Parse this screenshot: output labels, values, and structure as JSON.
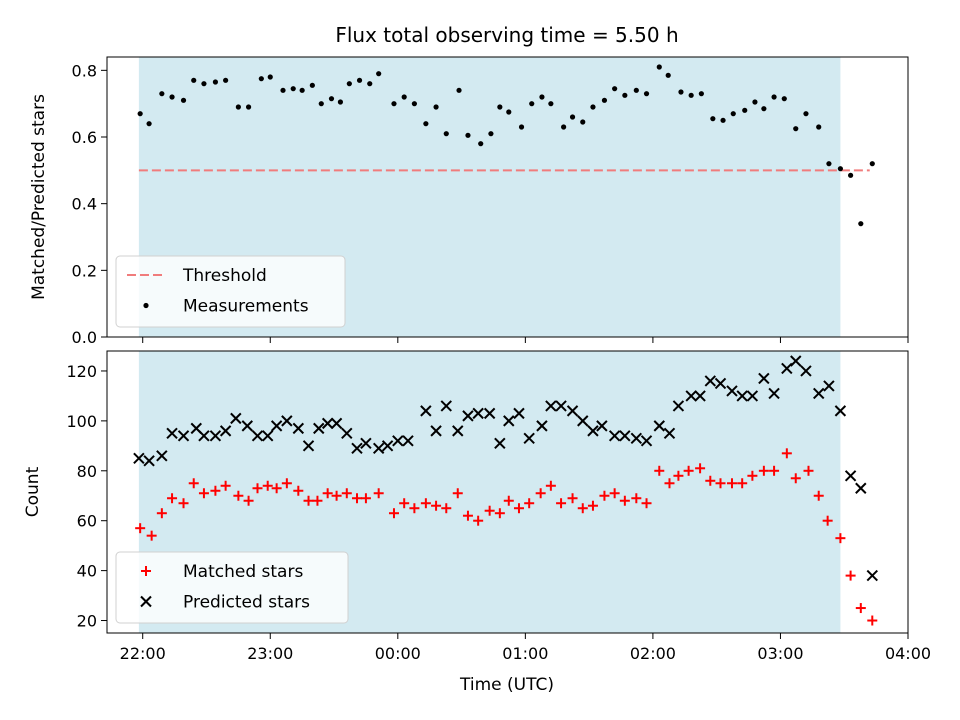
{
  "chart_data": {
    "title": "Flux total observing time = 5.50 h",
    "x_axis": {
      "label": "Time (UTC)",
      "range_hours": [
        21.72,
        28.0
      ],
      "ticks": [
        {
          "value": 22,
          "label": "22:00"
        },
        {
          "value": 23,
          "label": "23:00"
        },
        {
          "value": 24,
          "label": "00:00"
        },
        {
          "value": 25,
          "label": "01:00"
        },
        {
          "value": 26,
          "label": "02:00"
        },
        {
          "value": 27,
          "label": "03:00"
        },
        {
          "value": 28,
          "label": "04:00"
        }
      ]
    },
    "shaded_window_hours": [
      21.97,
      27.47
    ],
    "shade_color": "#d3eaf1",
    "panels": [
      {
        "type": "scatter",
        "ylabel": "Matched/Predicted stars",
        "ylim": [
          0,
          0.84
        ],
        "yticks": [
          {
            "value": 0.0,
            "label": "0.0"
          },
          {
            "value": 0.2,
            "label": "0.2"
          },
          {
            "value": 0.4,
            "label": "0.4"
          },
          {
            "value": 0.6,
            "label": "0.6"
          },
          {
            "value": 0.8,
            "label": "0.8"
          }
        ],
        "threshold": {
          "name": "Threshold",
          "value": 0.5,
          "x_range": [
            21.97,
            27.7
          ],
          "color": "#f07c7c"
        },
        "legend": {
          "placement": "lower-left",
          "entries": [
            "Threshold",
            "Measurements"
          ]
        },
        "series": [
          {
            "name": "Measurements",
            "marker": "dot",
            "color": "#000000",
            "x": [
              21.98,
              22.05,
              22.15,
              22.23,
              22.32,
              22.4,
              22.48,
              22.57,
              22.65,
              22.75,
              22.83,
              22.93,
              23.0,
              23.1,
              23.18,
              23.25,
              23.33,
              23.4,
              23.48,
              23.55,
              23.62,
              23.7,
              23.78,
              23.85,
              23.97,
              24.05,
              24.13,
              24.22,
              24.3,
              24.38,
              24.48,
              24.55,
              24.65,
              24.73,
              24.8,
              24.87,
              24.97,
              25.05,
              25.13,
              25.2,
              25.3,
              25.37,
              25.45,
              25.53,
              25.62,
              25.7,
              25.78,
              25.87,
              25.95,
              26.05,
              26.12,
              26.22,
              26.3,
              26.38,
              26.47,
              26.55,
              26.63,
              26.72,
              26.8,
              26.87,
              26.95,
              27.03,
              27.12,
              27.2,
              27.3,
              27.38,
              27.47,
              27.55,
              27.63,
              27.72
            ],
            "y": [
              0.67,
              0.64,
              0.73,
              0.72,
              0.71,
              0.77,
              0.76,
              0.765,
              0.77,
              0.69,
              0.69,
              0.775,
              0.78,
              0.74,
              0.745,
              0.74,
              0.755,
              0.7,
              0.715,
              0.705,
              0.76,
              0.77,
              0.76,
              0.79,
              0.7,
              0.72,
              0.7,
              0.64,
              0.69,
              0.61,
              0.74,
              0.605,
              0.58,
              0.61,
              0.69,
              0.675,
              0.63,
              0.7,
              0.72,
              0.7,
              0.63,
              0.66,
              0.645,
              0.69,
              0.71,
              0.745,
              0.725,
              0.74,
              0.73,
              0.81,
              0.785,
              0.735,
              0.725,
              0.73,
              0.655,
              0.65,
              0.67,
              0.68,
              0.705,
              0.685,
              0.72,
              0.715,
              0.625,
              0.67,
              0.63,
              0.52,
              0.505,
              0.485,
              0.34,
              0.52
            ]
          }
        ]
      },
      {
        "type": "scatter",
        "ylabel": "Count",
        "ylim": [
          15,
          128
        ],
        "yticks": [
          {
            "value": 20,
            "label": "20"
          },
          {
            "value": 40,
            "label": "40"
          },
          {
            "value": 60,
            "label": "60"
          },
          {
            "value": 80,
            "label": "80"
          },
          {
            "value": 100,
            "label": "100"
          },
          {
            "value": 120,
            "label": "120"
          }
        ],
        "legend": {
          "placement": "lower-left",
          "entries": [
            "Matched stars",
            "Predicted stars"
          ]
        },
        "series": [
          {
            "name": "Matched stars",
            "marker": "plus",
            "color": "#ff0000",
            "x": [
              21.98,
              22.07,
              22.15,
              22.23,
              22.32,
              22.4,
              22.48,
              22.57,
              22.65,
              22.75,
              22.83,
              22.9,
              22.98,
              23.05,
              23.13,
              23.22,
              23.3,
              23.37,
              23.45,
              23.52,
              23.6,
              23.68,
              23.75,
              23.85,
              23.97,
              24.05,
              24.13,
              24.22,
              24.3,
              24.38,
              24.47,
              24.55,
              24.63,
              24.72,
              24.8,
              24.87,
              24.95,
              25.03,
              25.12,
              25.2,
              25.28,
              25.37,
              25.45,
              25.53,
              25.62,
              25.7,
              25.78,
              25.87,
              25.95,
              26.05,
              26.13,
              26.2,
              26.28,
              26.37,
              26.45,
              26.53,
              26.62,
              26.7,
              26.78,
              26.87,
              26.95,
              27.05,
              27.12,
              27.22,
              27.3,
              27.37,
              27.47,
              27.55,
              27.63,
              27.72
            ],
            "y": [
              57,
              54,
              63,
              69,
              67,
              75,
              71,
              72,
              74,
              70,
              68,
              73,
              74,
              73,
              75,
              72,
              68,
              68,
              71,
              70,
              71,
              69,
              69,
              71,
              63,
              67,
              65,
              67,
              66,
              65,
              71,
              62,
              60,
              64,
              63,
              68,
              65,
              67,
              71,
              74,
              67,
              69,
              65,
              66,
              70,
              71,
              68,
              69,
              67,
              80,
              75,
              78,
              80,
              81,
              76,
              75,
              75,
              75,
              78,
              80,
              80,
              87,
              77,
              80,
              70,
              60,
              53,
              38,
              25,
              20
            ]
          },
          {
            "name": "Predicted stars",
            "marker": "x",
            "color": "#000000",
            "x": [
              21.97,
              22.05,
              22.15,
              22.23,
              22.32,
              22.42,
              22.48,
              22.57,
              22.65,
              22.73,
              22.82,
              22.9,
              22.98,
              23.05,
              23.13,
              23.22,
              23.3,
              23.38,
              23.45,
              23.52,
              23.6,
              23.68,
              23.75,
              23.85,
              23.92,
              24.0,
              24.08,
              24.22,
              24.3,
              24.38,
              24.47,
              24.55,
              24.63,
              24.72,
              24.8,
              24.87,
              24.95,
              25.03,
              25.13,
              25.2,
              25.28,
              25.37,
              25.45,
              25.53,
              25.6,
              25.7,
              25.78,
              25.87,
              25.95,
              26.05,
              26.13,
              26.2,
              26.3,
              26.37,
              26.45,
              26.53,
              26.62,
              26.7,
              26.78,
              26.87,
              26.95,
              27.05,
              27.12,
              27.2,
              27.3,
              27.38,
              27.47,
              27.55,
              27.63,
              27.72
            ],
            "y": [
              85,
              84,
              86,
              95,
              94,
              97,
              94,
              94,
              96,
              101,
              98,
              94,
              94,
              98,
              100,
              97,
              90,
              97,
              99,
              99,
              95,
              89,
              91,
              89,
              90,
              92,
              92,
              104,
              96,
              106,
              96,
              102,
              103,
              103,
              91,
              100,
              103,
              93,
              98,
              106,
              106,
              104,
              100,
              96,
              98,
              94,
              94,
              93,
              92,
              98,
              95,
              106,
              110,
              110,
              116,
              115,
              112,
              110,
              110,
              117,
              111,
              121,
              124,
              120,
              111,
              114,
              104,
              78,
              73,
              38
            ]
          }
        ]
      }
    ]
  }
}
